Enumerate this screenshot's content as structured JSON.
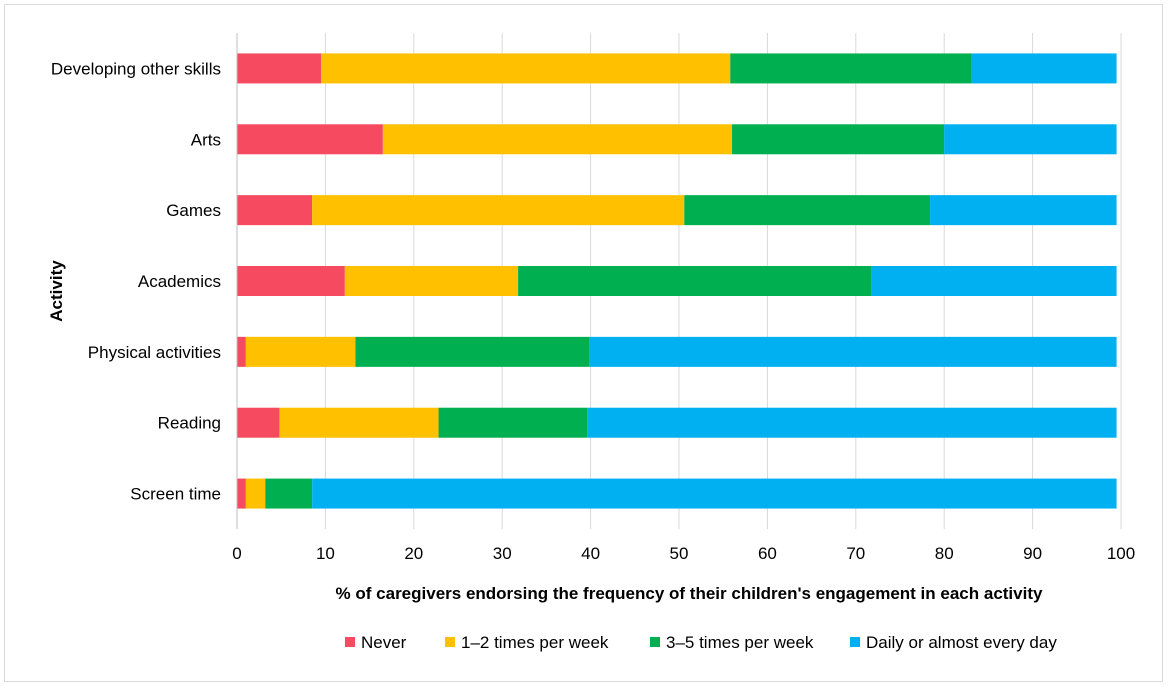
{
  "chart_data": {
    "type": "bar",
    "orientation": "horizontal",
    "stacked": true,
    "title": "",
    "xlabel": "% of caregivers endorsing the frequency of their children's engagement in each activity",
    "ylabel": "Activity",
    "xlim": [
      0,
      100
    ],
    "xticks": [
      0,
      10,
      20,
      30,
      40,
      50,
      60,
      70,
      80,
      90,
      100
    ],
    "grid": true,
    "legend_position": "bottom",
    "categories": [
      "Developing other skills",
      "Arts",
      "Games",
      "Academics",
      "Physical activities",
      "Reading",
      "Screen time"
    ],
    "series": [
      {
        "name": "Never",
        "color": "#f54a5f",
        "values": [
          9.5,
          16.5,
          8.5,
          12.2,
          1.0,
          4.8,
          1.0
        ]
      },
      {
        "name": "1–2 times per week",
        "color": "#ffc000",
        "values": [
          46.3,
          39.5,
          42.1,
          19.6,
          12.4,
          18.0,
          2.2
        ]
      },
      {
        "name": "3–5 times per week",
        "color": "#00b050",
        "values": [
          27.3,
          24.0,
          27.8,
          40.0,
          26.5,
          16.8,
          5.3
        ]
      },
      {
        "name": "Daily or almost every day",
        "color": "#00b0f0",
        "values": [
          16.4,
          19.5,
          21.1,
          27.7,
          59.6,
          59.9,
          91.0
        ]
      }
    ]
  }
}
